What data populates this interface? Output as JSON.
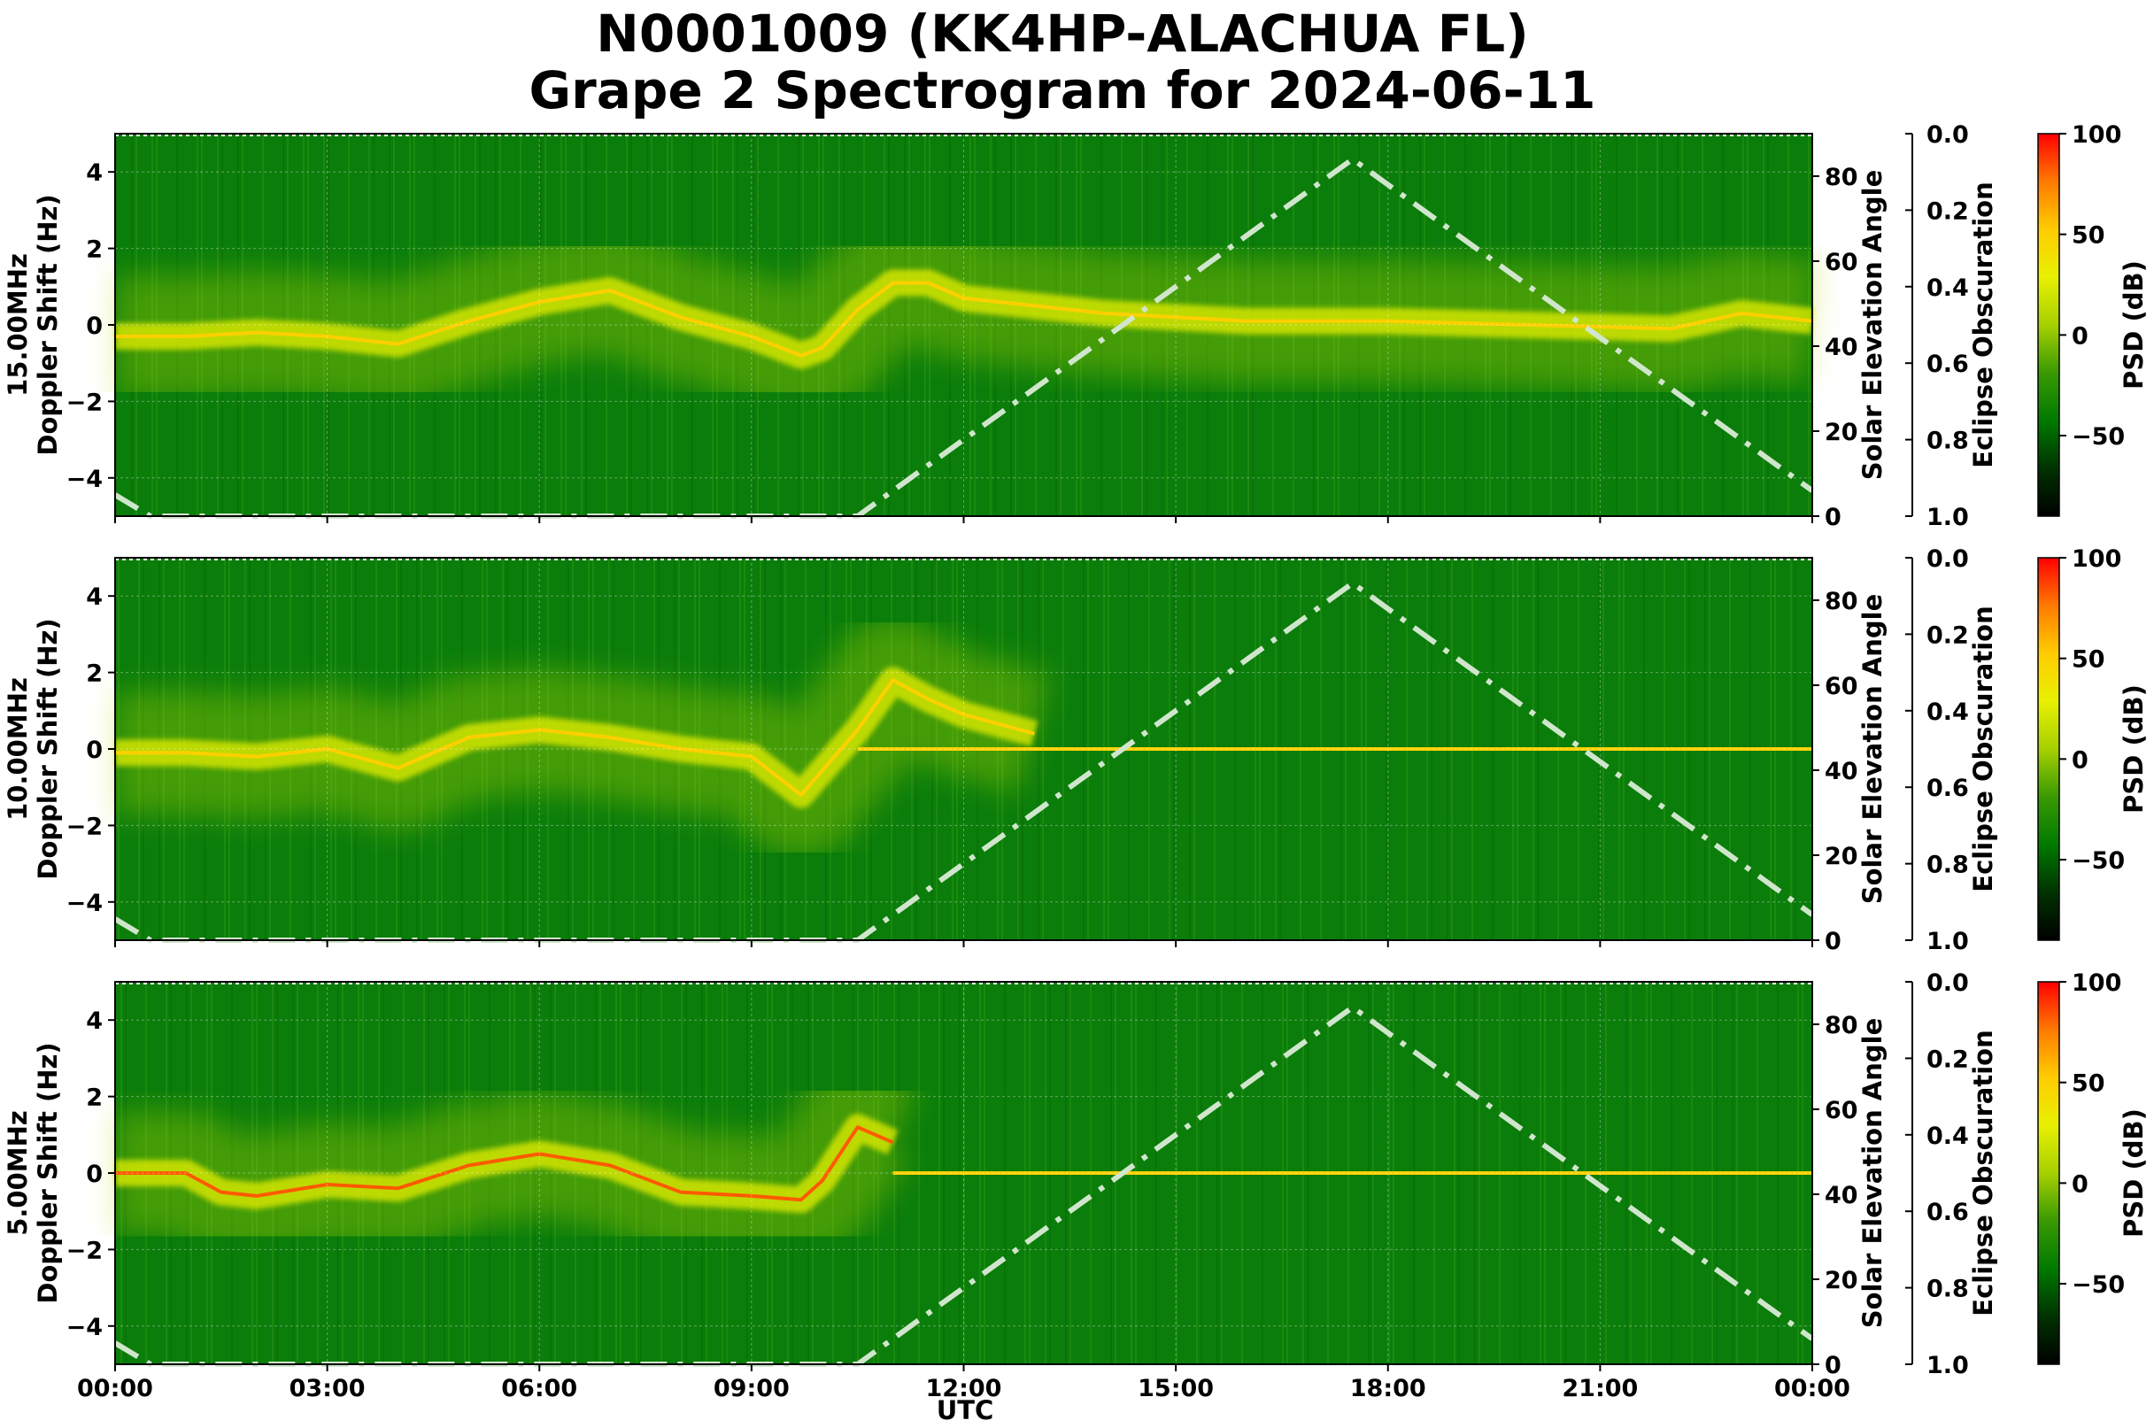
{
  "title_line1": "N0001009 (KK4HP-ALACHUA FL)",
  "title_line2": "Grape 2 Spectrogram for 2024-06-11",
  "xlabel": "UTC",
  "x_tick_labels": [
    "00:00",
    "03:00",
    "06:00",
    "09:00",
    "12:00",
    "15:00",
    "18:00",
    "21:00",
    "00:00"
  ],
  "y_tick_labels": [
    "4",
    "2",
    "0",
    "−2",
    "−4"
  ],
  "elev_tick_labels": [
    "80",
    "60",
    "40",
    "20",
    "0"
  ],
  "ecl_tick_labels": [
    "0.0",
    "0.2",
    "0.4",
    "0.6",
    "0.8",
    "1.0"
  ],
  "cb_tick_labels": [
    "100",
    "50",
    "0",
    "−50"
  ],
  "ylabel_doppler": "Doppler Shift (Hz)",
  "ylabel_elev": "Solar Elevation Angle",
  "ylabel_ecl": "Eclipse Obscuration",
  "cb_label": "PSD (dB)",
  "colors": {
    "colormap": [
      "#000000",
      "#003300",
      "#007a00",
      "#3a9a00",
      "#a6d000",
      "#e8f000",
      "#ffcc00",
      "#ff7a00",
      "#ff0000"
    ],
    "elevation_line": "#d0e6cc"
  },
  "chart_data": {
    "type": "heatmap",
    "x_unit": "UTC hours",
    "xlim": [
      0,
      24
    ],
    "ylim": [
      -5,
      5
    ],
    "elevation_ylim": [
      0,
      90
    ],
    "obscuration_ylim": [
      0,
      1
    ],
    "obscuration_inverted": true,
    "colorbar_range": [
      -90,
      100
    ],
    "colormap": "black-green-yellow-red",
    "grid": true,
    "solar_elevation": {
      "x": [
        0,
        0.5,
        10.5,
        12,
        14,
        16,
        17.5,
        19,
        21,
        23,
        24
      ],
      "y": [
        5,
        0,
        0,
        18,
        42,
        66,
        84,
        66,
        42,
        18,
        6
      ]
    },
    "panels": [
      {
        "ylabel": "15.00MHz",
        "segments": [
          {
            "x": [
              0,
              1,
              2,
              3,
              4,
              5,
              6,
              7,
              8,
              9,
              9.7,
              10,
              10.5,
              11,
              11.5,
              12,
              13,
              14,
              16,
              18,
              20,
              22,
              23,
              24
            ],
            "y": [
              -0.3,
              -0.3,
              -0.2,
              -0.3,
              -0.5,
              0.1,
              0.6,
              0.9,
              0.2,
              -0.3,
              -0.8,
              -0.6,
              0.4,
              1.1,
              1.1,
              0.7,
              0.5,
              0.3,
              0.1,
              0.1,
              0.0,
              -0.1,
              0.3,
              0.1
            ]
          }
        ]
      },
      {
        "ylabel": "10.00MHz",
        "segments": [
          {
            "x": [
              0,
              1,
              2,
              3,
              4,
              5,
              6,
              7,
              8,
              9,
              9.7,
              10.5,
              11,
              11.5,
              12,
              13
            ],
            "y": [
              -0.1,
              -0.1,
              -0.2,
              0.0,
              -0.5,
              0.3,
              0.5,
              0.3,
              0.0,
              -0.2,
              -1.2,
              0.5,
              1.8,
              1.3,
              0.9,
              0.4
            ]
          },
          {
            "x": [
              10.5,
              14,
              18,
              22,
              24
            ],
            "y": [
              0.0,
              0.0,
              0.0,
              0.0,
              0.0
            ]
          }
        ]
      },
      {
        "ylabel": "5.00MHz",
        "segments": [
          {
            "x": [
              0,
              1,
              1.5,
              2,
              3,
              4,
              5,
              6,
              7,
              8,
              9,
              9.7,
              10,
              10.5,
              11
            ],
            "y": [
              0.0,
              0.0,
              -0.5,
              -0.6,
              -0.3,
              -0.4,
              0.2,
              0.5,
              0.2,
              -0.5,
              -0.6,
              -0.7,
              -0.2,
              1.2,
              0.8
            ]
          },
          {
            "x": [
              11,
              14,
              18,
              22,
              24
            ],
            "y": [
              0.0,
              0.0,
              0.0,
              0.0,
              0.0
            ]
          }
        ]
      }
    ]
  }
}
